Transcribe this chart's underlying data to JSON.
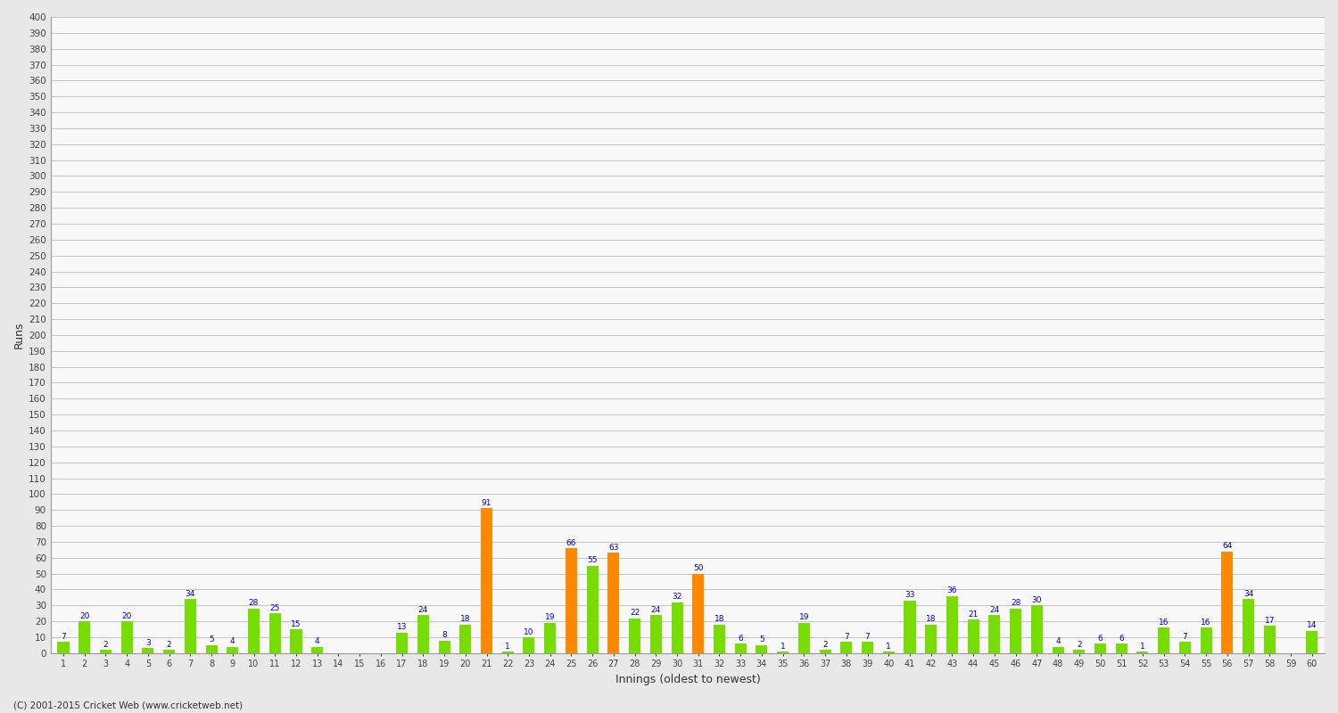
{
  "title": "",
  "xlabel": "Innings (oldest to newest)",
  "ylabel": "Runs",
  "background_color": "#e8e8e8",
  "plot_background": "#f8f8f8",
  "bar_color_green": "#77dd00",
  "bar_color_orange": "#ff8800",
  "bar_label_color": "#0000cc",
  "ylim": [
    0,
    400
  ],
  "ytick_step": 10,
  "innings": [
    {
      "x": 1,
      "val": 7,
      "orange": false
    },
    {
      "x": 2,
      "val": 20,
      "orange": false
    },
    {
      "x": 3,
      "val": 2,
      "orange": false
    },
    {
      "x": 4,
      "val": 20,
      "orange": false
    },
    {
      "x": 5,
      "val": 3,
      "orange": false
    },
    {
      "x": 6,
      "val": 2,
      "orange": false
    },
    {
      "x": 7,
      "val": 34,
      "orange": false
    },
    {
      "x": 8,
      "val": 5,
      "orange": false
    },
    {
      "x": 9,
      "val": 4,
      "orange": false
    },
    {
      "x": 10,
      "val": 28,
      "orange": false
    },
    {
      "x": 11,
      "val": 25,
      "orange": false
    },
    {
      "x": 12,
      "val": 15,
      "orange": false
    },
    {
      "x": 13,
      "val": 4,
      "orange": false
    },
    {
      "x": 14,
      "val": 0,
      "orange": false
    },
    {
      "x": 15,
      "val": 0,
      "orange": false
    },
    {
      "x": 16,
      "val": 0,
      "orange": false
    },
    {
      "x": 17,
      "val": 13,
      "orange": false
    },
    {
      "x": 18,
      "val": 24,
      "orange": false
    },
    {
      "x": 19,
      "val": 8,
      "orange": false
    },
    {
      "x": 20,
      "val": 18,
      "orange": false
    },
    {
      "x": 21,
      "val": 91,
      "orange": true
    },
    {
      "x": 22,
      "val": 1,
      "orange": false
    },
    {
      "x": 23,
      "val": 10,
      "orange": false
    },
    {
      "x": 24,
      "val": 19,
      "orange": false
    },
    {
      "x": 25,
      "val": 66,
      "orange": true
    },
    {
      "x": 26,
      "val": 55,
      "orange": false
    },
    {
      "x": 27,
      "val": 63,
      "orange": true
    },
    {
      "x": 28,
      "val": 22,
      "orange": false
    },
    {
      "x": 29,
      "val": 24,
      "orange": false
    },
    {
      "x": 30,
      "val": 32,
      "orange": false
    },
    {
      "x": 31,
      "val": 50,
      "orange": true
    },
    {
      "x": 32,
      "val": 18,
      "orange": false
    },
    {
      "x": 33,
      "val": 6,
      "orange": false
    },
    {
      "x": 34,
      "val": 5,
      "orange": false
    },
    {
      "x": 35,
      "val": 1,
      "orange": false
    },
    {
      "x": 36,
      "val": 19,
      "orange": false
    },
    {
      "x": 37,
      "val": 2,
      "orange": false
    },
    {
      "x": 38,
      "val": 7,
      "orange": false
    },
    {
      "x": 39,
      "val": 7,
      "orange": false
    },
    {
      "x": 40,
      "val": 1,
      "orange": false
    },
    {
      "x": 41,
      "val": 33,
      "orange": false
    },
    {
      "x": 42,
      "val": 18,
      "orange": false
    },
    {
      "x": 43,
      "val": 36,
      "orange": false
    },
    {
      "x": 44,
      "val": 21,
      "orange": false
    },
    {
      "x": 45,
      "val": 24,
      "orange": false
    },
    {
      "x": 46,
      "val": 28,
      "orange": false
    },
    {
      "x": 47,
      "val": 30,
      "orange": false
    },
    {
      "x": 48,
      "val": 4,
      "orange": false
    },
    {
      "x": 49,
      "val": 2,
      "orange": false
    },
    {
      "x": 50,
      "val": 6,
      "orange": false
    },
    {
      "x": 51,
      "val": 6,
      "orange": false
    },
    {
      "x": 52,
      "val": 1,
      "orange": false
    },
    {
      "x": 53,
      "val": 16,
      "orange": false
    },
    {
      "x": 54,
      "val": 7,
      "orange": false
    },
    {
      "x": 55,
      "val": 16,
      "orange": false
    },
    {
      "x": 56,
      "val": 64,
      "orange": true
    },
    {
      "x": 57,
      "val": 34,
      "orange": false
    },
    {
      "x": 58,
      "val": 17,
      "orange": false
    },
    {
      "x": 59,
      "val": 0,
      "orange": false
    },
    {
      "x": 60,
      "val": 14,
      "orange": false
    }
  ],
  "footer": "(C) 2001-2015 Cricket Web (www.cricketweb.net)"
}
